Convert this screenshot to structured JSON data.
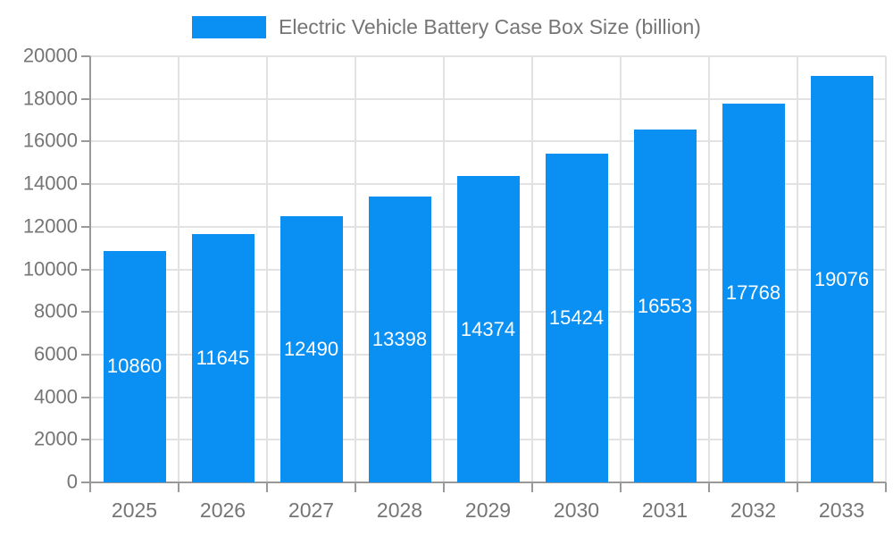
{
  "legend": {
    "label": "Electric Vehicle Battery Case Box Size (billion)"
  },
  "chart_data": {
    "type": "bar",
    "title": "Electric Vehicle Battery Case Box Size (billion)",
    "categories": [
      "2025",
      "2026",
      "2027",
      "2028",
      "2029",
      "2030",
      "2031",
      "2032",
      "2033"
    ],
    "series": [
      {
        "name": "Electric Vehicle Battery Case Box Size (billion)",
        "values": [
          10860,
          11645,
          12490,
          13398,
          14374,
          15424,
          16553,
          17768,
          19076
        ]
      }
    ],
    "xlabel": "",
    "ylabel": "",
    "ylim": [
      0,
      20000
    ],
    "ytick_step": 2000,
    "grid": true,
    "legend_position": "top",
    "value_labels": "inside-center",
    "colors": {
      "bar": "#0a8ff2",
      "grid": "#e2e2e2",
      "axis": "#999999",
      "tick_text": "#757575",
      "value_label": "#ffffff",
      "background": "#ffffff"
    }
  }
}
